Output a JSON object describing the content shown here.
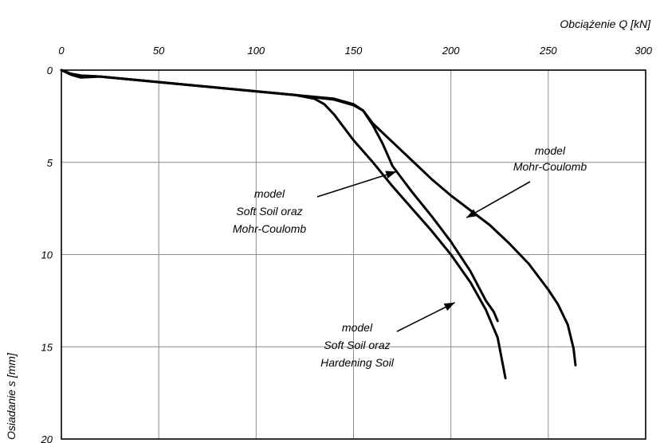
{
  "chart_data": {
    "type": "line",
    "xlabel": "Obciążenie  Q  [kN]",
    "ylabel": "Osiadanie  s  [mm]",
    "x_ticks": [
      "0",
      "50",
      "100",
      "150",
      "200",
      "250",
      "300"
    ],
    "y_ticks": [
      "0",
      "5",
      "10",
      "15",
      "20"
    ],
    "xlim": [
      0,
      300
    ],
    "ylim": [
      0,
      20
    ],
    "x_axis_position": "top",
    "y_axis_inverted": true,
    "grid": true,
    "series": [
      {
        "x": [
          0,
          5,
          10,
          20,
          40,
          60,
          80,
          100,
          120,
          130,
          135,
          140,
          150,
          160,
          170,
          180,
          190,
          200,
          210,
          218,
          224,
          226,
          228
        ],
        "y": [
          0,
          0.2,
          0.3,
          0.35,
          0.55,
          0.75,
          0.95,
          1.15,
          1.35,
          1.55,
          1.85,
          2.4,
          3.8,
          5.0,
          6.3,
          7.5,
          8.7,
          10.0,
          11.5,
          13.0,
          14.5,
          15.6,
          16.7
        ]
      },
      {
        "x": [
          0,
          5,
          10,
          20,
          40,
          60,
          80,
          100,
          120,
          140,
          150,
          155,
          160,
          165,
          170,
          180,
          190,
          200,
          210,
          218,
          222,
          224
        ],
        "y": [
          0,
          0.25,
          0.4,
          0.35,
          0.55,
          0.75,
          0.95,
          1.15,
          1.35,
          1.6,
          1.9,
          2.2,
          3.0,
          4.0,
          5.2,
          6.6,
          7.9,
          9.3,
          10.9,
          12.5,
          13.1,
          13.6
        ]
      },
      {
        "x": [
          0,
          5,
          10,
          20,
          40,
          60,
          80,
          100,
          120,
          140,
          150,
          155,
          160,
          170,
          180,
          190,
          200,
          210,
          220,
          230,
          240,
          250,
          255,
          260,
          263,
          264
        ],
        "y": [
          0,
          0.2,
          0.3,
          0.35,
          0.55,
          0.75,
          0.95,
          1.15,
          1.35,
          1.55,
          1.85,
          2.2,
          2.9,
          3.9,
          4.9,
          5.9,
          6.8,
          7.6,
          8.4,
          9.4,
          10.5,
          11.9,
          12.7,
          13.8,
          15.1,
          16.0
        ]
      }
    ],
    "annotations": [
      {
        "lines": [
          "model",
          "Mohr-Coulomb"
        ],
        "arrow_to": [
          208,
          8.0
        ]
      },
      {
        "lines": [
          "model",
          "Soft Soil oraz",
          "Mohr-Coulomb"
        ],
        "arrow_to": [
          172,
          5.5
        ]
      },
      {
        "lines": [
          "model",
          "Soft Soil oraz",
          "Hardening Soil"
        ],
        "arrow_to": [
          202,
          12.6
        ]
      }
    ]
  }
}
